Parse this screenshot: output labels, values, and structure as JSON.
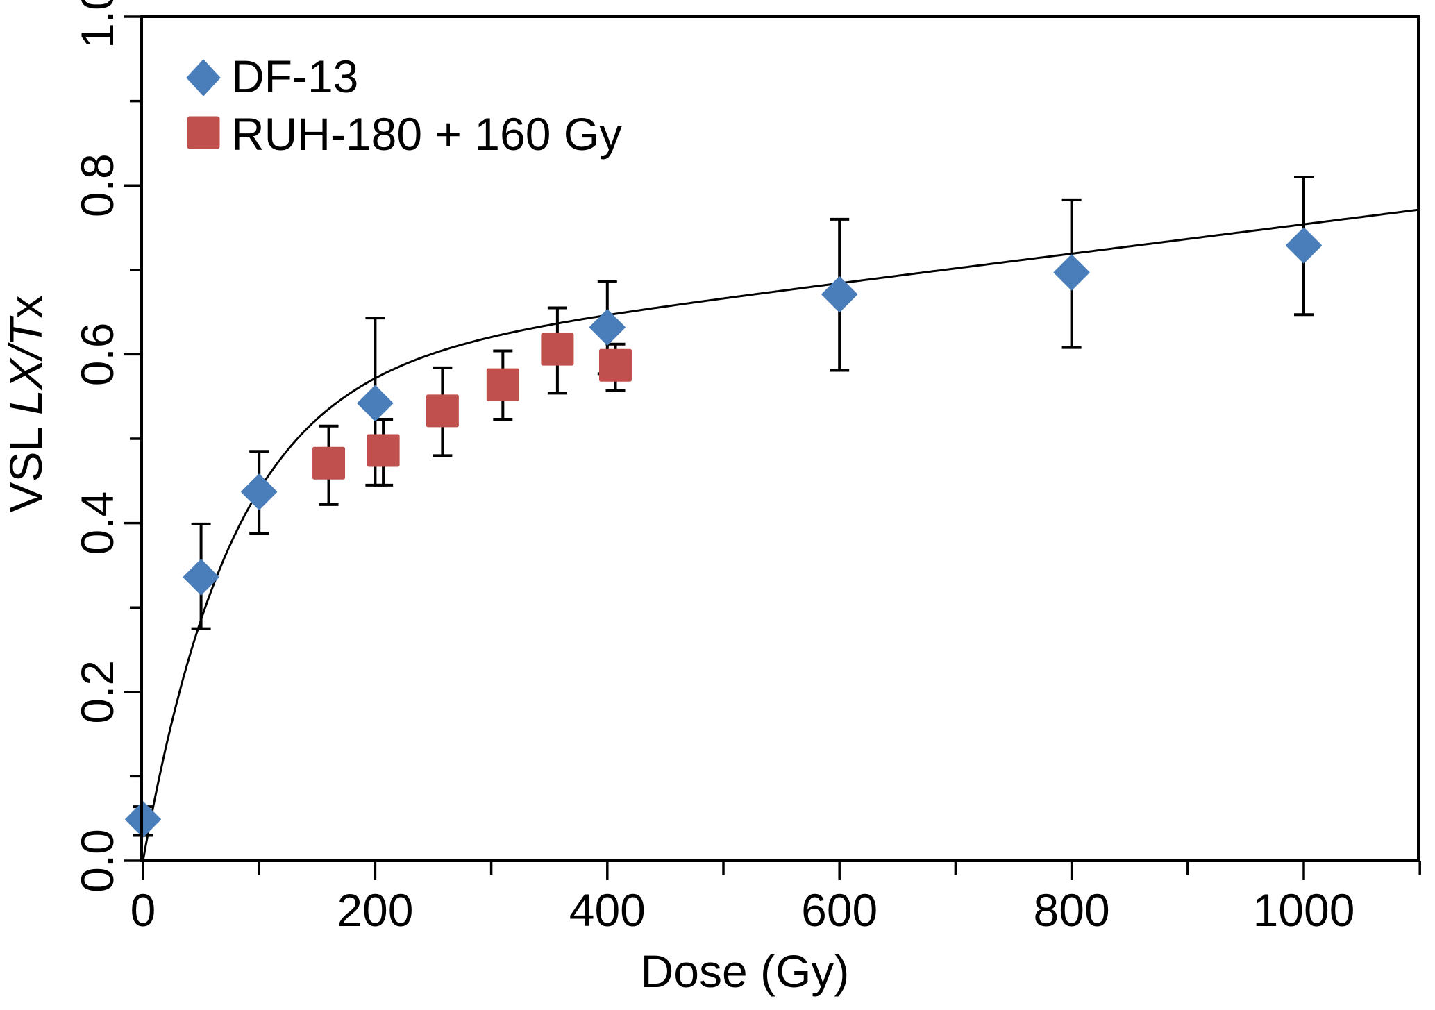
{
  "chart_data": {
    "type": "scatter",
    "title": "",
    "xlabel": "Dose (Gy)",
    "ylabel_parts": [
      {
        "text": "VSL ",
        "italic": false
      },
      {
        "text": "LX/T",
        "italic": true
      },
      {
        "text": "x",
        "italic": false
      }
    ],
    "ylabel": "VSL LX/Tx",
    "xlim": [
      0,
      1100
    ],
    "ylim": [
      0,
      1.0
    ],
    "x_major_ticks": [
      0,
      200,
      400,
      600,
      800,
      1000
    ],
    "x_minor_ticks": [
      100,
      300,
      500,
      700,
      900,
      1100
    ],
    "x_tick_labels": [
      "0",
      "200",
      "400",
      "600",
      "800",
      "1000"
    ],
    "y_major_ticks": [
      0,
      0.2,
      0.4,
      0.6,
      0.8,
      1.0
    ],
    "y_minor_ticks": [
      0.1,
      0.3,
      0.5,
      0.7,
      0.9
    ],
    "y_tick_labels": [
      "0.0",
      "0.2",
      "0.4",
      "0.6",
      "0.8",
      "1.0"
    ],
    "grid": false,
    "legend_position": "top-left",
    "series": [
      {
        "name": "DF-13",
        "marker": "diamond",
        "color": "#4a7ebb",
        "points": [
          {
            "x": 0,
            "y": 0.049,
            "err_low": 0.03,
            "err_high": 0.064
          },
          {
            "x": 50,
            "y": 0.336,
            "err_low": 0.275,
            "err_high": 0.399
          },
          {
            "x": 100,
            "y": 0.437,
            "err_low": 0.388,
            "err_high": 0.485
          },
          {
            "x": 200,
            "y": 0.542,
            "err_low": 0.445,
            "err_high": 0.643
          },
          {
            "x": 400,
            "y": 0.632,
            "err_low": 0.577,
            "err_high": 0.686
          },
          {
            "x": 600,
            "y": 0.671,
            "err_low": 0.581,
            "err_high": 0.76
          },
          {
            "x": 800,
            "y": 0.697,
            "err_low": 0.608,
            "err_high": 0.783
          },
          {
            "x": 1000,
            "y": 0.729,
            "err_low": 0.647,
            "err_high": 0.81
          }
        ]
      },
      {
        "name": "RUH-180 + 160 Gy",
        "marker": "square",
        "color": "#c0504d",
        "points": [
          {
            "x": 160,
            "y": 0.471,
            "err_low": 0.422,
            "err_high": 0.515
          },
          {
            "x": 207,
            "y": 0.486,
            "err_low": 0.445,
            "err_high": 0.523
          },
          {
            "x": 258,
            "y": 0.533,
            "err_low": 0.48,
            "err_high": 0.584
          },
          {
            "x": 310,
            "y": 0.564,
            "err_low": 0.523,
            "err_high": 0.604
          },
          {
            "x": 357,
            "y": 0.606,
            "err_low": 0.554,
            "err_high": 0.655
          },
          {
            "x": 407,
            "y": 0.587,
            "err_low": 0.557,
            "err_high": 0.612
          }
        ]
      }
    ],
    "fit_curve": {
      "name": "fit",
      "model": "y = A*(1 - exp(-x/D0)) + k*x",
      "A": 0.58,
      "D0": 77,
      "k": 0.000174,
      "x_range": [
        0,
        1100
      ],
      "color": "#000000"
    }
  }
}
